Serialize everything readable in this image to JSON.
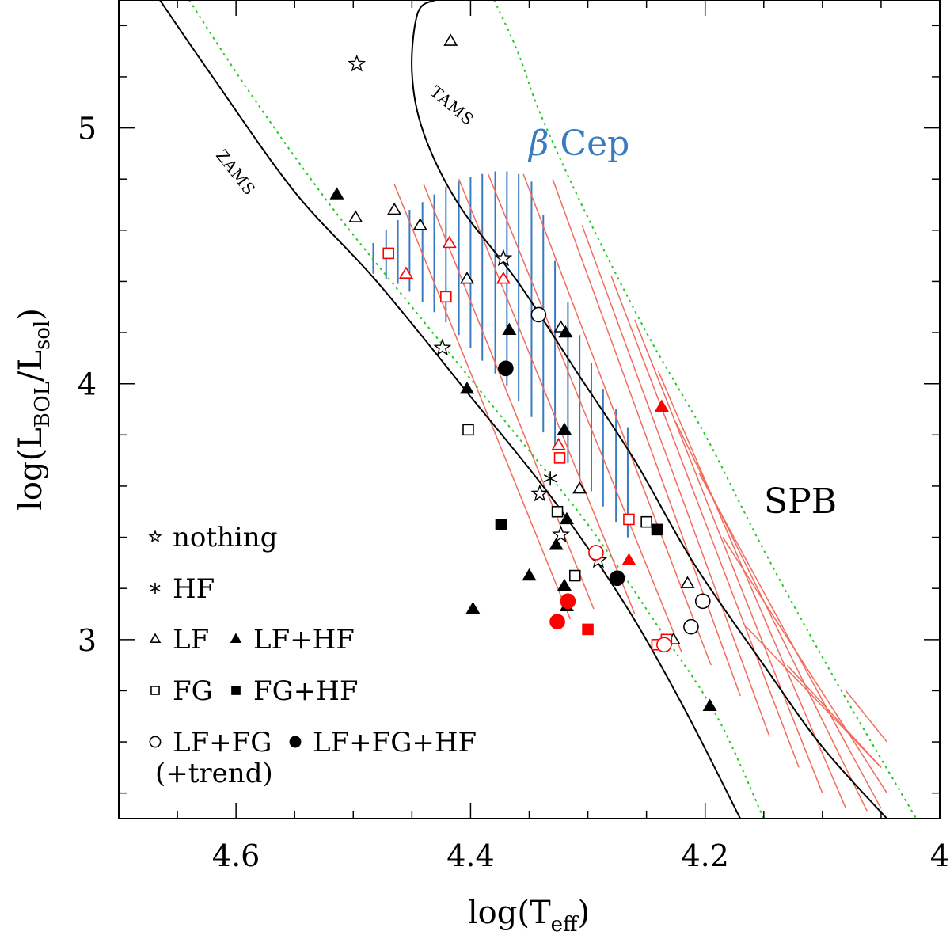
{
  "chart_data": {
    "type": "scatter",
    "xlabel": {
      "main": "log(T",
      "sub": "eff",
      "close": ")"
    },
    "ylabel": {
      "main": "log(L",
      "sub1": "BOL",
      "slash": "/L",
      "sub2": "sol",
      "close": ")"
    },
    "xlim": [
      4.7,
      4.0
    ],
    "ylim": [
      2.3,
      5.5
    ],
    "x_ticks": [
      4.6,
      4.4,
      4.2,
      4.0
    ],
    "x_tick_labels": [
      "4.6",
      "4.4",
      "4.2",
      "4"
    ],
    "y_ticks": [
      3,
      4,
      5
    ],
    "y_tick_labels": [
      "3",
      "4",
      "5"
    ],
    "colors": {
      "black": "#000000",
      "red": "#ff0000",
      "bcep": "#3a7bbf",
      "spb": "#f26b5b",
      "track_dotted": "#22cc22"
    },
    "tracks": [
      {
        "name": "ZAMS",
        "label": "ZAMS",
        "style": "solid",
        "points": [
          [
            4.665,
            5.5
          ],
          [
            4.62,
            5.2
          ],
          [
            4.55,
            4.75
          ],
          [
            4.48,
            4.4
          ],
          [
            4.4,
            3.95
          ],
          [
            4.33,
            3.55
          ],
          [
            4.27,
            3.15
          ],
          [
            4.22,
            2.75
          ],
          [
            4.17,
            2.3
          ]
        ]
      },
      {
        "name": "ZAMS-dotted",
        "label": "",
        "style": "dotted",
        "points": [
          [
            4.64,
            5.5
          ],
          [
            4.59,
            5.15
          ],
          [
            4.52,
            4.7
          ],
          [
            4.45,
            4.3
          ],
          [
            4.37,
            3.85
          ],
          [
            4.3,
            3.45
          ],
          [
            4.24,
            3.05
          ],
          [
            4.19,
            2.7
          ],
          [
            4.15,
            2.3
          ]
        ]
      },
      {
        "name": "TAMS",
        "label": "TAMS",
        "style": "solid",
        "points": [
          [
            4.43,
            5.5
          ],
          [
            4.445,
            5.45
          ],
          [
            4.45,
            5.22
          ],
          [
            4.44,
            4.98
          ],
          [
            4.41,
            4.7
          ],
          [
            4.36,
            4.4
          ],
          [
            4.31,
            4.05
          ],
          [
            4.26,
            3.7
          ],
          [
            4.21,
            3.3
          ],
          [
            4.15,
            2.9
          ],
          [
            4.1,
            2.58
          ],
          [
            4.045,
            2.3
          ]
        ]
      },
      {
        "name": "TAMS-dotted",
        "label": "",
        "style": "dotted",
        "points": [
          [
            4.38,
            5.5
          ],
          [
            4.36,
            5.3
          ],
          [
            4.34,
            5.05
          ],
          [
            4.3,
            4.65
          ],
          [
            4.25,
            4.2
          ],
          [
            4.2,
            3.8
          ],
          [
            4.15,
            3.35
          ],
          [
            4.09,
            2.85
          ],
          [
            4.02,
            2.3
          ]
        ]
      }
    ],
    "regions": [
      {
        "name": "beta Cep",
        "label_greek": "β",
        "label_text": " Cep",
        "color": "#3a7bbf",
        "hatch": [
          [
            4.483,
            4.43,
            4.55
          ],
          [
            4.472,
            4.41,
            4.6
          ],
          [
            4.462,
            4.39,
            4.64
          ],
          [
            4.452,
            4.36,
            4.68
          ],
          [
            4.441,
            4.32,
            4.71
          ],
          [
            4.431,
            4.28,
            4.74
          ],
          [
            4.421,
            4.24,
            4.77
          ],
          [
            4.41,
            4.19,
            4.79
          ],
          [
            4.4,
            4.14,
            4.81
          ],
          [
            4.39,
            4.09,
            4.82
          ],
          [
            4.379,
            4.04,
            4.83
          ],
          [
            4.369,
            3.99,
            4.83
          ],
          [
            4.359,
            3.93,
            4.82
          ],
          [
            4.348,
            3.87,
            4.79
          ],
          [
            4.338,
            3.81,
            4.66
          ],
          [
            4.328,
            3.75,
            4.48
          ],
          [
            4.317,
            3.69,
            4.32
          ],
          [
            4.307,
            3.63,
            4.19
          ],
          [
            4.297,
            3.58,
            4.08
          ],
          [
            4.287,
            3.52,
            3.98
          ],
          [
            4.276,
            3.46,
            3.9
          ],
          [
            4.266,
            3.4,
            3.83
          ]
        ]
      },
      {
        "name": "SPB",
        "label_text": "SPB",
        "color": "#f26b5b",
        "hatch": [
          [
            [
              4.465,
              4.78
            ],
            [
              4.315,
              3.08
            ]
          ],
          [
            [
              4.44,
              4.78
            ],
            [
              4.295,
              3.12
            ]
          ],
          [
            [
              4.41,
              4.8
            ],
            [
              4.26,
              3.1
            ]
          ],
          [
            [
              4.385,
              4.82
            ],
            [
              4.22,
              2.95
            ]
          ],
          [
            [
              4.355,
              4.82
            ],
            [
              4.195,
              2.9
            ]
          ],
          [
            [
              4.33,
              4.8
            ],
            [
              4.17,
              2.78
            ]
          ],
          [
            [
              4.305,
              4.62
            ],
            [
              4.145,
              2.62
            ]
          ],
          [
            [
              4.28,
              4.42
            ],
            [
              4.12,
              2.5
            ]
          ],
          [
            [
              4.26,
              4.25
            ],
            [
              4.1,
              2.4
            ]
          ],
          [
            [
              4.24,
              4.05
            ],
            [
              4.08,
              2.34
            ]
          ],
          [
            [
              4.225,
              3.85
            ],
            [
              4.062,
              2.33
            ]
          ],
          [
            [
              4.205,
              3.65
            ],
            [
              4.05,
              2.34
            ]
          ],
          [
            [
              4.185,
              3.4
            ],
            [
              4.045,
              2.4
            ]
          ],
          [
            [
              4.165,
              3.05
            ],
            [
              4.05,
              2.5
            ]
          ],
          [
            [
              4.13,
              2.9
            ],
            [
              4.05,
              2.5
            ]
          ],
          [
            [
              4.08,
              2.8
            ],
            [
              4.045,
              2.6
            ]
          ]
        ]
      }
    ],
    "series": [
      {
        "name": "nothing",
        "marker": "star",
        "filled": false,
        "color": "#000000",
        "points": [
          [
            4.497,
            5.25
          ],
          [
            4.424,
            4.14
          ],
          [
            4.372,
            4.49
          ],
          [
            4.341,
            3.57
          ],
          [
            4.323,
            3.41
          ],
          [
            4.291,
            3.31
          ]
        ]
      },
      {
        "name": "HF",
        "marker": "asterisk",
        "filled": false,
        "color": "#000000",
        "points": [
          [
            4.332,
            3.63
          ]
        ]
      },
      {
        "name": "LF",
        "marker": "triangle",
        "filled": false,
        "color": "#000000",
        "points": [
          [
            4.417,
            5.34
          ],
          [
            4.498,
            4.65
          ],
          [
            4.465,
            4.68
          ],
          [
            4.443,
            4.62
          ],
          [
            4.403,
            4.41
          ],
          [
            4.323,
            4.22
          ],
          [
            4.307,
            3.59
          ],
          [
            4.215,
            3.22
          ],
          [
            4.227,
            3.0
          ]
        ]
      },
      {
        "name": "LF (+trend)",
        "marker": "triangle",
        "filled": false,
        "color": "#ff0000",
        "points": [
          [
            4.455,
            4.43
          ],
          [
            4.418,
            4.55
          ],
          [
            4.372,
            4.41
          ],
          [
            4.325,
            3.76
          ]
        ]
      },
      {
        "name": "LF+HF",
        "marker": "triangle",
        "filled": true,
        "color": "#000000",
        "points": [
          [
            4.514,
            4.74
          ],
          [
            4.403,
            3.98
          ],
          [
            4.367,
            4.21
          ],
          [
            4.319,
            4.2
          ],
          [
            4.32,
            3.82
          ],
          [
            4.318,
            3.47
          ],
          [
            4.327,
            3.37
          ],
          [
            4.32,
            3.21
          ],
          [
            4.318,
            3.13
          ],
          [
            4.35,
            3.25
          ],
          [
            4.398,
            3.12
          ],
          [
            4.196,
            2.74
          ]
        ]
      },
      {
        "name": "LF+HF (+trend)",
        "marker": "triangle",
        "filled": true,
        "color": "#ff0000",
        "points": [
          [
            4.237,
            3.91
          ],
          [
            4.265,
            3.31
          ]
        ]
      },
      {
        "name": "FG",
        "marker": "square",
        "filled": false,
        "color": "#000000",
        "points": [
          [
            4.402,
            3.82
          ],
          [
            4.326,
            3.5
          ],
          [
            4.311,
            3.25
          ],
          [
            4.25,
            3.46
          ]
        ]
      },
      {
        "name": "FG (+trend)",
        "marker": "square",
        "filled": false,
        "color": "#ff0000",
        "points": [
          [
            4.47,
            4.51
          ],
          [
            4.421,
            4.34
          ],
          [
            4.324,
            3.71
          ],
          [
            4.265,
            3.47
          ],
          [
            4.241,
            2.98
          ],
          [
            4.233,
            3.0
          ]
        ]
      },
      {
        "name": "FG+HF",
        "marker": "square",
        "filled": true,
        "color": "#000000",
        "points": [
          [
            4.374,
            3.45
          ],
          [
            4.241,
            3.43
          ]
        ]
      },
      {
        "name": "FG+HF (+trend)",
        "marker": "square",
        "filled": true,
        "color": "#ff0000",
        "points": [
          [
            4.3,
            3.04
          ]
        ]
      },
      {
        "name": "LF+FG",
        "marker": "circle",
        "filled": false,
        "color": "#000000",
        "points": [
          [
            4.342,
            4.27
          ],
          [
            4.202,
            3.15
          ],
          [
            4.212,
            3.05
          ]
        ]
      },
      {
        "name": "LF+FG (+trend)",
        "marker": "circle",
        "filled": false,
        "color": "#ff0000",
        "points": [
          [
            4.293,
            3.34
          ],
          [
            4.235,
            2.98
          ]
        ]
      },
      {
        "name": "LF+FG+HF",
        "marker": "circle",
        "filled": true,
        "color": "#000000",
        "points": [
          [
            4.37,
            4.06
          ],
          [
            4.275,
            3.24
          ]
        ]
      },
      {
        "name": "LF+FG+HF (+trend)",
        "marker": "circle",
        "filled": true,
        "color": "#ff0000",
        "points": [
          [
            4.317,
            3.15
          ],
          [
            4.326,
            3.07
          ]
        ]
      }
    ],
    "legend": {
      "placement": "bottom-left",
      "entries": [
        {
          "marker": "star",
          "filled": false,
          "text": "nothing"
        },
        {
          "marker": "asterisk",
          "filled": false,
          "text": "HF"
        },
        {
          "marker": "triangle",
          "filled": false,
          "text": "LF"
        },
        {
          "marker": "triangle",
          "filled": true,
          "text": "LF+HF"
        },
        {
          "marker": "square",
          "filled": false,
          "text": "FG"
        },
        {
          "marker": "square",
          "filled": true,
          "text": "FG+HF"
        },
        {
          "marker": "circle",
          "filled": false,
          "text": "LF+FG"
        },
        {
          "marker": "circle",
          "filled": true,
          "text": "LF+FG+HF"
        }
      ],
      "trend_note": "(+trend)"
    }
  }
}
